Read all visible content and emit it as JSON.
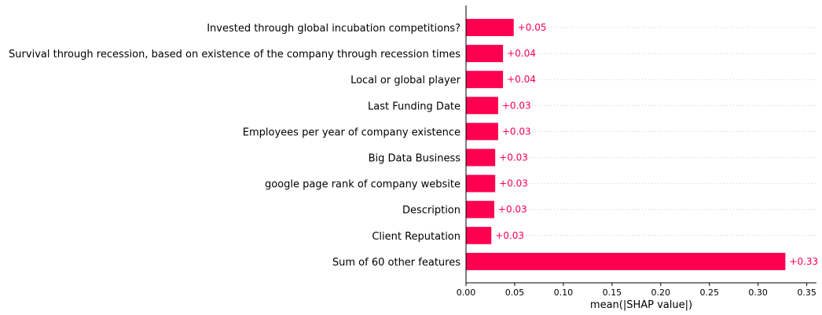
{
  "chart_data": {
    "type": "bar",
    "orientation": "horizontal",
    "categories": [
      "Invested through global incubation competitions?",
      "Survival through recession, based on existence of the company through recession times",
      "Local or global player",
      "Last Funding Date",
      "Employees per year of company existence",
      "Big Data Business",
      "google page rank of company website",
      "Description",
      "Client Reputation",
      "Sum of 60 other features"
    ],
    "values": [
      0.049,
      0.038,
      0.038,
      0.033,
      0.033,
      0.03,
      0.03,
      0.029,
      0.026,
      0.328
    ],
    "value_labels": [
      "+0.05",
      "+0.04",
      "+0.04",
      "+0.03",
      "+0.03",
      "+0.03",
      "+0.03",
      "+0.03",
      "+0.03",
      "+0.33"
    ],
    "xlabel": "mean(|SHAP value|)",
    "xlim": [
      0,
      0.36
    ],
    "xticks": [
      0.0,
      0.05,
      0.1,
      0.15,
      0.2,
      0.25,
      0.3,
      0.35
    ],
    "xtick_labels": [
      "0.00",
      "0.05",
      "0.10",
      "0.15",
      "0.20",
      "0.25",
      "0.30",
      "0.35"
    ],
    "grid": "dotted horizontal row guides",
    "legend": "none",
    "bar_color": "#ff0051",
    "label_color": "#ff0051"
  }
}
